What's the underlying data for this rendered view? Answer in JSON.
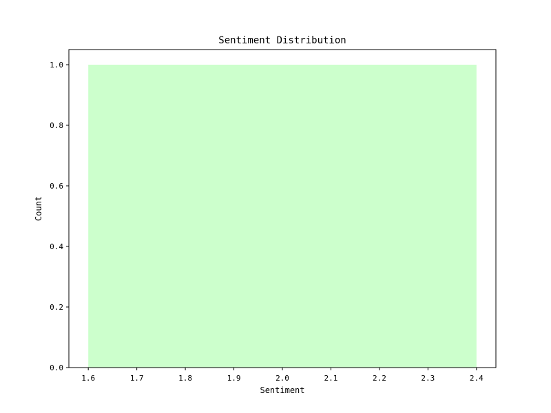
{
  "chart_data": {
    "type": "bar",
    "title": "Sentiment Distribution",
    "xlabel": "Sentiment",
    "ylabel": "Count",
    "xlim": [
      1.56,
      2.44
    ],
    "ylim": [
      0,
      1.05
    ],
    "xticks": [
      1.6,
      1.7,
      1.8,
      1.9,
      2.0,
      2.1,
      2.2,
      2.3,
      2.4
    ],
    "xtick_labels": [
      "1.6",
      "1.7",
      "1.8",
      "1.9",
      "2.0",
      "2.1",
      "2.2",
      "2.3",
      "2.4"
    ],
    "yticks": [
      0.0,
      0.2,
      0.4,
      0.6,
      0.8,
      1.0
    ],
    "ytick_labels": [
      "0.0",
      "0.2",
      "0.4",
      "0.6",
      "0.8",
      "1.0"
    ],
    "bars": [
      {
        "x_start": 1.6,
        "x_end": 2.4,
        "value": 1
      }
    ],
    "bar_color": "#ccffcc",
    "grid": false
  }
}
